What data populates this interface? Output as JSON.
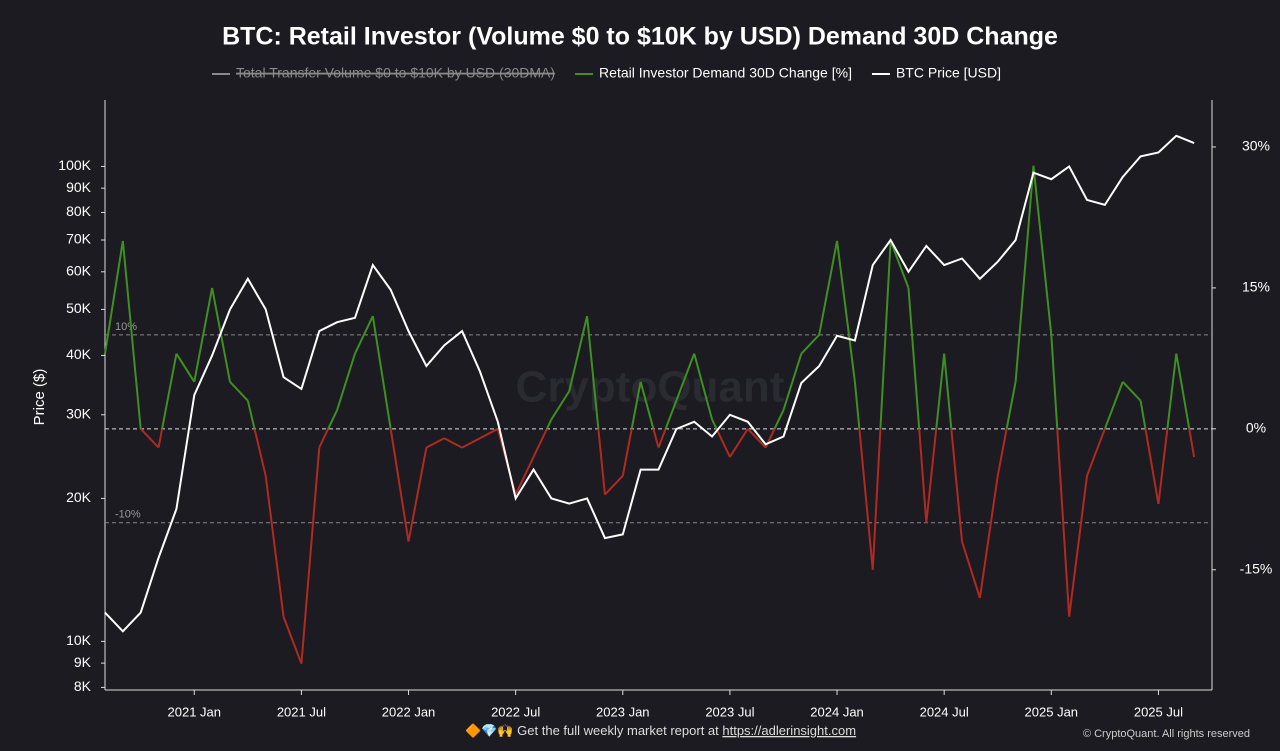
{
  "chart_data": {
    "type": "line",
    "title": "BTC: Retail Investor (Volume $0 to $10K by USD) Demand 30D Change",
    "hidden_series": {
      "name": "Total Transfer Volume $0 to $10K by USD (30DMA)",
      "color": "#8a8a8a"
    },
    "ylabel": "Price ($)",
    "x": [
      "2020-08",
      "2020-09",
      "2020-10",
      "2020-11",
      "2020-12",
      "2021-01",
      "2021-02",
      "2021-03",
      "2021-04",
      "2021-05",
      "2021-06",
      "2021-07",
      "2021-08",
      "2021-09",
      "2021-10",
      "2021-11",
      "2021-12",
      "2022-01",
      "2022-02",
      "2022-03",
      "2022-04",
      "2022-05",
      "2022-06",
      "2022-07",
      "2022-08",
      "2022-09",
      "2022-10",
      "2022-11",
      "2022-12",
      "2023-01",
      "2023-02",
      "2023-03",
      "2023-04",
      "2023-05",
      "2023-06",
      "2023-07",
      "2023-08",
      "2023-09",
      "2023-10",
      "2023-11",
      "2023-12",
      "2024-01",
      "2024-02",
      "2024-03",
      "2024-04",
      "2024-05",
      "2024-06",
      "2024-07",
      "2024-08",
      "2024-09",
      "2024-10",
      "2024-11",
      "2024-12",
      "2025-01",
      "2025-02",
      "2025-03",
      "2025-04",
      "2025-05",
      "2025-06",
      "2025-07",
      "2025-08",
      "2025-09"
    ],
    "xlim": [
      "2020-08",
      "2025-10"
    ],
    "xticks": [
      {
        "value": "2021-01",
        "label": "2021 Jan"
      },
      {
        "value": "2021-07",
        "label": "2021 Jul"
      },
      {
        "value": "2022-01",
        "label": "2022 Jan"
      },
      {
        "value": "2022-07",
        "label": "2022 Jul"
      },
      {
        "value": "2023-01",
        "label": "2023 Jan"
      },
      {
        "value": "2023-07",
        "label": "2023 Jul"
      },
      {
        "value": "2024-01",
        "label": "2024 Jan"
      },
      {
        "value": "2024-07",
        "label": "2024 Jul"
      },
      {
        "value": "2025-01",
        "label": "2025 Jan"
      },
      {
        "value": "2025-07",
        "label": "2025 Jul"
      }
    ],
    "series": [
      {
        "name": "Retail Investor Demand 30D Change [%]",
        "color": "#3f8f22",
        "negative_color": "#b02a22",
        "axis": "y2",
        "values": [
          8,
          20,
          0,
          -2,
          8,
          5,
          15,
          5,
          3,
          -5,
          -20,
          -25,
          -2,
          2,
          8,
          12,
          0,
          -12,
          -2,
          -1,
          -2,
          -1,
          0,
          -7,
          -3,
          1,
          4,
          12,
          -7,
          -5,
          5,
          -2,
          3,
          8,
          1,
          -3,
          0,
          -2,
          2,
          8,
          10,
          20,
          5,
          -15,
          20,
          15,
          -10,
          8,
          -12,
          -18,
          -5,
          5,
          28,
          10,
          -20,
          -5,
          0,
          5,
          3,
          -8,
          8,
          -3
        ]
      },
      {
        "name": "BTC Price [USD]",
        "color": "#ffffff",
        "axis": "y",
        "values": [
          11500,
          10500,
          11500,
          15000,
          19000,
          33000,
          40000,
          50000,
          58000,
          50000,
          36000,
          34000,
          45000,
          47000,
          48000,
          62000,
          55000,
          45000,
          38000,
          42000,
          45000,
          37000,
          29000,
          20000,
          23000,
          20000,
          19500,
          20000,
          16500,
          16800,
          23000,
          23000,
          28000,
          29000,
          27000,
          30000,
          29000,
          26000,
          27000,
          35000,
          38000,
          44000,
          43000,
          62000,
          70000,
          60000,
          68000,
          62000,
          64000,
          58000,
          63000,
          70000,
          97000,
          94000,
          100000,
          85000,
          83000,
          95000,
          105000,
          107000,
          116000,
          112000
        ]
      }
    ],
    "ylog": true,
    "ylim": [
      7900,
      138000
    ],
    "yticks": [
      {
        "value": 8000,
        "label": "8K"
      },
      {
        "value": 9000,
        "label": "9K"
      },
      {
        "value": 10000,
        "label": "10K"
      },
      {
        "value": 20000,
        "label": "20K"
      },
      {
        "value": 30000,
        "label": "30K"
      },
      {
        "value": 40000,
        "label": "40K"
      },
      {
        "value": 50000,
        "label": "50K"
      },
      {
        "value": 60000,
        "label": "60K"
      },
      {
        "value": 70000,
        "label": "70K"
      },
      {
        "value": 80000,
        "label": "80K"
      },
      {
        "value": 90000,
        "label": "90K"
      },
      {
        "value": 100000,
        "label": "100K"
      }
    ],
    "y2lim": [
      -27.8,
      35
    ],
    "y2ticks": [
      {
        "value": -15,
        "label": "-15%"
      },
      {
        "value": 0,
        "label": "0%"
      },
      {
        "value": 15,
        "label": "15%"
      },
      {
        "value": 30,
        "label": "30%"
      }
    ],
    "reference_lines": [
      {
        "value": 10,
        "label": "10%"
      },
      {
        "value": 0
      },
      {
        "value": -10,
        "label": "-10%"
      }
    ],
    "watermark": "CryptoQuant",
    "footer": "🔶💎🙌 Get the full weekly market report at ",
    "footer_link": "https://adlerinsight.com",
    "copyright": "© CryptoQuant. All rights reserved"
  }
}
